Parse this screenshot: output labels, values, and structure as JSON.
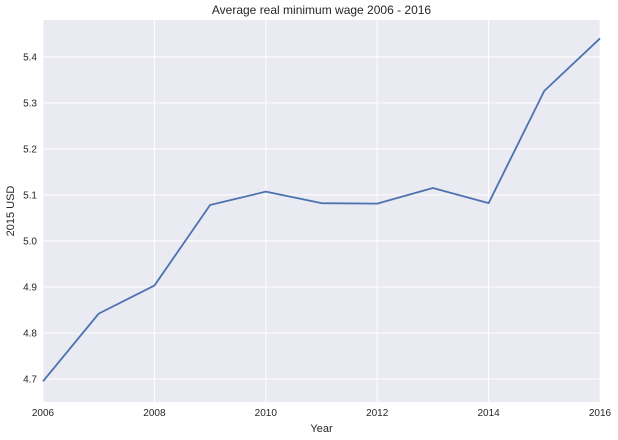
{
  "chart_data": {
    "type": "line",
    "title": "Average real minimum wage 2006 - 2016",
    "xlabel": "Year",
    "ylabel": "2015 USD",
    "xlim": [
      2006,
      2016
    ],
    "ylim": [
      4.65,
      5.48
    ],
    "xticks": [
      2006,
      2008,
      2010,
      2012,
      2014,
      2016
    ],
    "yticks": [
      4.7,
      4.8,
      4.9,
      5.0,
      5.1,
      5.2,
      5.3,
      5.4
    ],
    "ytick_labels": [
      "4.7",
      "4.8",
      "4.9",
      "5.0",
      "5.1",
      "5.2",
      "5.3",
      "5.4"
    ],
    "grid": true,
    "legend": "none",
    "series": [
      {
        "color": "#4c72b0",
        "x": [
          2006,
          2007,
          2008,
          2009,
          2010,
          2011,
          2012,
          2013,
          2014,
          2015,
          2016
        ],
        "values": [
          4.695,
          4.842,
          4.903,
          5.078,
          5.107,
          5.082,
          5.081,
          5.115,
          5.082,
          5.326,
          5.44
        ]
      }
    ],
    "colors": {
      "plot_background": "#eaeaf2",
      "grid": "#ffffff",
      "text": "#262626"
    }
  }
}
